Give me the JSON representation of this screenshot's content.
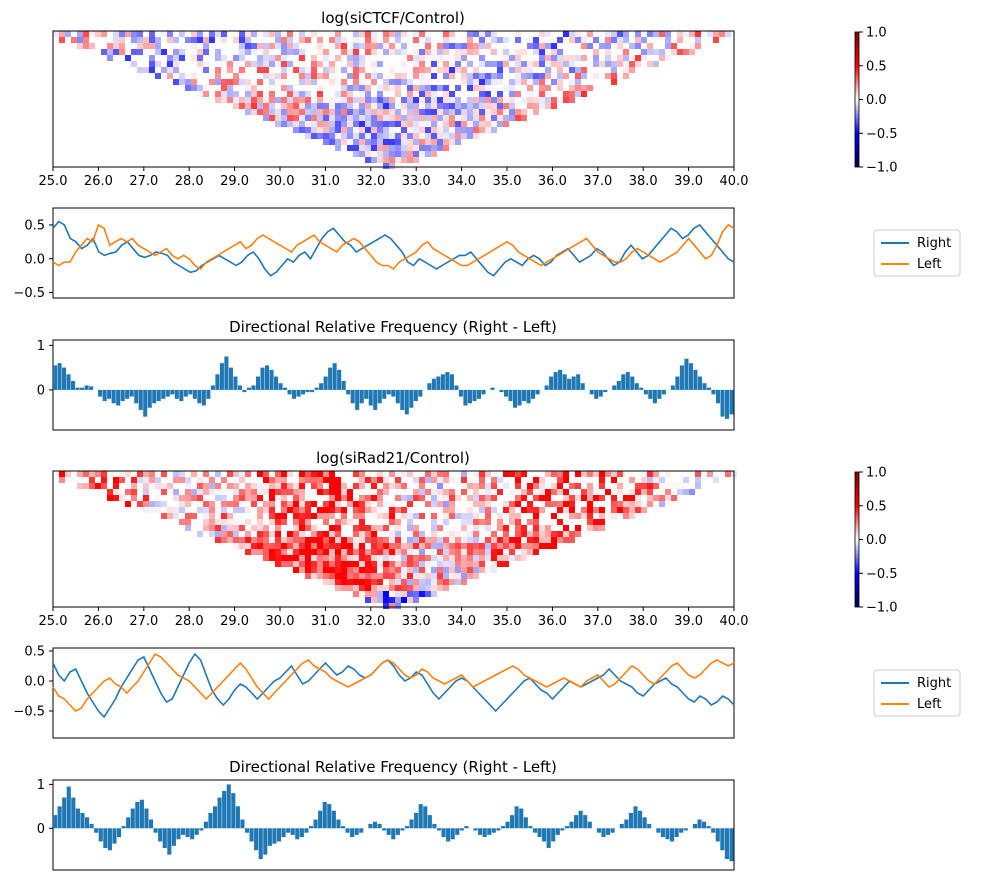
{
  "chart_data": [
    {
      "id": "ctcf_heatmap",
      "type": "heatmap",
      "title": "log(siCTCF/Control)",
      "xlim": [
        25.0,
        40.0
      ],
      "xticks": [
        "25.0",
        "26.0",
        "27.0",
        "28.0",
        "29.0",
        "30.0",
        "31.0",
        "32.0",
        "33.0",
        "34.0",
        "35.0",
        "36.0",
        "37.0",
        "38.0",
        "39.0",
        "40.0"
      ],
      "colorbar": {
        "min": -1.0,
        "max": 1.0,
        "ticks": [
          "1.0",
          "0.5",
          "0.0",
          "−0.5",
          "−1.0"
        ],
        "colormap": "seismic"
      }
    },
    {
      "id": "ctcf_lines",
      "type": "line",
      "ylim": [
        -0.58,
        0.75
      ],
      "yticks": [
        "0.5",
        "0.0",
        "−0.5"
      ],
      "legend": "right",
      "series": [
        {
          "name": "Right",
          "color": "#1f77b4",
          "values": [
            0.45,
            0.55,
            0.5,
            0.3,
            0.25,
            0.15,
            0.2,
            0.3,
            0.1,
            0.05,
            0.08,
            0.1,
            0.2,
            0.25,
            0.15,
            0.05,
            0.02,
            0.05,
            0.1,
            0.08,
            0.05,
            -0.05,
            -0.1,
            -0.15,
            -0.2,
            -0.18,
            -0.1,
            -0.05,
            0.0,
            0.05,
            0.0,
            -0.05,
            -0.1,
            -0.05,
            0.05,
            0.1,
            0.0,
            -0.15,
            -0.25,
            -0.2,
            -0.1,
            0.0,
            -0.05,
            0.05,
            0.1,
            0.0,
            0.15,
            0.3,
            0.4,
            0.45,
            0.35,
            0.25,
            0.2,
            0.1,
            0.15,
            0.2,
            0.25,
            0.3,
            0.35,
            0.3,
            0.2,
            0.1,
            -0.05,
            -0.1,
            0.0,
            -0.05,
            -0.1,
            -0.15,
            -0.1,
            -0.05,
            0.0,
            0.05,
            0.05,
            0.1,
            0.0,
            -0.1,
            -0.2,
            -0.25,
            -0.15,
            -0.05,
            0.0,
            -0.05,
            -0.1,
            0.0,
            0.05,
            0.0,
            -0.1,
            -0.05,
            0.05,
            0.1,
            0.15,
            0.05,
            -0.05,
            0.0,
            0.05,
            0.15,
            0.1,
            0.0,
            -0.1,
            -0.05,
            0.1,
            0.2,
            0.1,
            0.0,
            0.05,
            0.15,
            0.25,
            0.35,
            0.45,
            0.4,
            0.3,
            0.35,
            0.45,
            0.5,
            0.4,
            0.3,
            0.2,
            0.1,
            0.0,
            -0.05
          ]
        },
        {
          "name": "Left",
          "color": "#ff7f0e",
          "values": [
            -0.05,
            -0.1,
            -0.05,
            -0.05,
            0.1,
            0.2,
            0.3,
            0.25,
            0.5,
            0.45,
            0.2,
            0.25,
            0.3,
            0.25,
            0.3,
            0.2,
            0.15,
            0.1,
            0.05,
            0.1,
            0.15,
            0.05,
            0.0,
            0.05,
            0.0,
            -0.1,
            -0.15,
            -0.05,
            0.0,
            0.05,
            0.1,
            0.15,
            0.2,
            0.25,
            0.15,
            0.2,
            0.3,
            0.35,
            0.3,
            0.25,
            0.2,
            0.15,
            0.1,
            0.2,
            0.25,
            0.3,
            0.35,
            0.25,
            0.2,
            0.15,
            0.1,
            0.2,
            0.25,
            0.3,
            0.25,
            0.15,
            0.05,
            -0.05,
            -0.1,
            -0.1,
            -0.15,
            -0.05,
            0.0,
            0.05,
            0.1,
            0.2,
            0.25,
            0.15,
            0.1,
            0.05,
            0.0,
            -0.05,
            -0.1,
            -0.1,
            -0.05,
            0.0,
            0.05,
            0.1,
            0.15,
            0.2,
            0.25,
            0.2,
            0.1,
            0.05,
            0.0,
            -0.05,
            -0.1,
            -0.05,
            0.0,
            0.05,
            0.1,
            0.15,
            0.2,
            0.25,
            0.3,
            0.2,
            0.1,
            0.05,
            0.0,
            -0.05,
            -0.05,
            0.0,
            0.1,
            0.15,
            0.1,
            0.05,
            0.0,
            -0.05,
            0.0,
            0.05,
            0.1,
            0.2,
            0.3,
            0.2,
            0.1,
            0.0,
            0.05,
            0.2,
            0.4,
            0.5,
            0.45
          ]
        }
      ]
    },
    {
      "id": "ctcf_bars",
      "type": "bar",
      "title": "Directional Relative Frequency (Right - Left)",
      "ylim": [
        -0.9,
        1.12
      ],
      "yticks": [
        "1",
        "0"
      ],
      "color": "#1f77b4",
      "values": [
        0.55,
        0.6,
        0.5,
        0.35,
        0.2,
        0.05,
        0.05,
        0.1,
        0.08,
        0.0,
        -0.15,
        -0.25,
        -0.2,
        -0.3,
        -0.35,
        -0.25,
        -0.2,
        -0.15,
        -0.3,
        -0.45,
        -0.6,
        -0.4,
        -0.3,
        -0.25,
        -0.2,
        -0.15,
        -0.1,
        -0.2,
        -0.25,
        -0.15,
        -0.1,
        -0.2,
        -0.3,
        -0.35,
        -0.2,
        0.1,
        0.35,
        0.6,
        0.75,
        0.5,
        0.3,
        0.1,
        -0.05,
        0.05,
        0.1,
        0.3,
        0.5,
        0.55,
        0.45,
        0.3,
        0.15,
        0.05,
        -0.1,
        -0.2,
        -0.15,
        -0.1,
        -0.05,
        -0.05,
        0.05,
        0.15,
        0.3,
        0.5,
        0.6,
        0.45,
        0.2,
        -0.1,
        -0.3,
        -0.45,
        -0.3,
        -0.2,
        -0.35,
        -0.45,
        -0.3,
        -0.2,
        -0.1,
        -0.15,
        -0.3,
        -0.45,
        -0.55,
        -0.4,
        -0.25,
        -0.15,
        0.0,
        0.15,
        0.25,
        0.3,
        0.35,
        0.4,
        0.35,
        0.1,
        -0.15,
        -0.35,
        -0.3,
        -0.25,
        -0.2,
        -0.1,
        0.0,
        0.05,
        0.0,
        -0.05,
        -0.15,
        -0.25,
        -0.4,
        -0.35,
        -0.25,
        -0.3,
        -0.2,
        -0.1,
        0.0,
        0.1,
        0.3,
        0.4,
        0.45,
        0.35,
        0.25,
        0.3,
        0.35,
        0.15,
        0.0,
        -0.1,
        -0.2,
        -0.15,
        -0.05,
        0.0,
        0.1,
        0.2,
        0.35,
        0.4,
        0.3,
        0.15,
        0.05,
        -0.1,
        -0.2,
        -0.3,
        -0.2,
        -0.1,
        0.0,
        0.1,
        0.3,
        0.55,
        0.7,
        0.6,
        0.45,
        0.3,
        0.15,
        0.05,
        -0.1,
        -0.3,
        -0.6,
        -0.65,
        -0.55
      ]
    },
    {
      "id": "rad21_heatmap",
      "type": "heatmap",
      "title": "log(siRad21/Control)",
      "xlim": [
        25.0,
        40.0
      ],
      "xticks": [
        "25.0",
        "26.0",
        "27.0",
        "28.0",
        "29.0",
        "30.0",
        "31.0",
        "32.0",
        "33.0",
        "34.0",
        "35.0",
        "36.0",
        "37.0",
        "38.0",
        "39.0",
        "40.0"
      ],
      "colorbar": {
        "min": -1.0,
        "max": 1.0,
        "ticks": [
          "1.0",
          "0.5",
          "0.0",
          "−0.5",
          "−1.0"
        ],
        "colormap": "seismic"
      }
    },
    {
      "id": "rad21_lines",
      "type": "line",
      "ylim": [
        -0.95,
        0.55
      ],
      "yticks": [
        "0.5",
        "0.0",
        "−0.5"
      ],
      "legend": "right",
      "series": [
        {
          "name": "Right",
          "color": "#1f77b4",
          "values": [
            0.3,
            0.1,
            0.0,
            0.15,
            0.2,
            0.0,
            -0.2,
            -0.35,
            -0.5,
            -0.6,
            -0.45,
            -0.3,
            -0.1,
            0.05,
            0.2,
            0.35,
            0.4,
            0.2,
            0.0,
            -0.2,
            -0.35,
            -0.3,
            -0.1,
            0.1,
            0.3,
            0.45,
            0.35,
            0.1,
            -0.15,
            -0.3,
            -0.4,
            -0.3,
            -0.15,
            -0.05,
            -0.1,
            -0.2,
            -0.3,
            -0.2,
            -0.1,
            0.0,
            0.05,
            0.15,
            0.25,
            0.1,
            -0.05,
            0.0,
            0.1,
            0.2,
            0.3,
            0.2,
            0.1,
            0.15,
            0.25,
            0.2,
            0.1,
            0.05,
            0.1,
            0.2,
            0.3,
            0.35,
            0.25,
            0.1,
            0.0,
            0.05,
            0.15,
            0.1,
            -0.05,
            -0.2,
            -0.3,
            -0.2,
            -0.1,
            0.0,
            0.05,
            0.0,
            -0.1,
            -0.2,
            -0.3,
            -0.4,
            -0.5,
            -0.4,
            -0.3,
            -0.2,
            -0.1,
            0.0,
            0.05,
            -0.05,
            -0.15,
            -0.2,
            -0.3,
            -0.2,
            -0.1,
            0.0,
            -0.05,
            -0.1,
            -0.05,
            0.0,
            0.05,
            0.1,
            0.2,
            0.1,
            0.0,
            -0.05,
            -0.1,
            -0.2,
            -0.25,
            -0.15,
            -0.05,
            0.0,
            0.05,
            -0.05,
            -0.1,
            -0.2,
            -0.3,
            -0.35,
            -0.25,
            -0.3,
            -0.4,
            -0.35,
            -0.25,
            -0.3,
            -0.4
          ]
        },
        {
          "name": "Left",
          "color": "#ff7f0e",
          "values": [
            -0.1,
            -0.25,
            -0.3,
            -0.4,
            -0.5,
            -0.45,
            -0.3,
            -0.2,
            -0.1,
            0.0,
            0.05,
            -0.05,
            -0.1,
            -0.2,
            -0.1,
            0.0,
            0.15,
            0.3,
            0.45,
            0.4,
            0.3,
            0.2,
            0.1,
            0.05,
            0.0,
            -0.1,
            -0.2,
            -0.3,
            -0.2,
            -0.1,
            0.0,
            0.1,
            0.2,
            0.3,
            0.2,
            0.05,
            -0.1,
            -0.2,
            -0.3,
            -0.2,
            -0.1,
            0.0,
            0.1,
            0.2,
            0.3,
            0.35,
            0.25,
            0.2,
            0.15,
            0.05,
            0.0,
            -0.05,
            -0.1,
            -0.05,
            0.0,
            0.05,
            0.1,
            0.2,
            0.3,
            0.35,
            0.3,
            0.2,
            0.1,
            0.05,
            0.1,
            0.2,
            0.15,
            0.05,
            0.0,
            -0.05,
            0.0,
            0.05,
            0.1,
            0.0,
            -0.1,
            -0.05,
            0.0,
            0.05,
            0.1,
            0.15,
            0.2,
            0.25,
            0.2,
            0.1,
            0.05,
            0.0,
            -0.05,
            -0.1,
            -0.05,
            0.0,
            0.05,
            0.0,
            -0.05,
            -0.1,
            0.0,
            0.05,
            0.1,
            0.0,
            -0.1,
            -0.05,
            0.05,
            0.15,
            0.25,
            0.2,
            0.1,
            0.0,
            -0.05,
            0.05,
            0.15,
            0.25,
            0.3,
            0.2,
            0.1,
            0.05,
            0.1,
            0.2,
            0.3,
            0.35,
            0.3,
            0.25,
            0.3
          ]
        }
      ]
    },
    {
      "id": "rad21_bars",
      "type": "bar",
      "title": "Directional Relative Frequency (Right - Left)",
      "ylim": [
        -0.95,
        1.1
      ],
      "yticks": [
        "1",
        "0"
      ],
      "color": "#1f77b4",
      "values": [
        0.3,
        0.5,
        0.7,
        0.95,
        0.7,
        0.45,
        0.35,
        0.25,
        0.1,
        -0.1,
        -0.3,
        -0.45,
        -0.5,
        -0.35,
        -0.2,
        0.05,
        0.25,
        0.45,
        0.6,
        0.65,
        0.45,
        0.2,
        -0.1,
        -0.3,
        -0.45,
        -0.6,
        -0.4,
        -0.25,
        -0.15,
        -0.2,
        -0.25,
        -0.15,
        -0.05,
        0.15,
        0.35,
        0.5,
        0.7,
        0.85,
        1.0,
        0.8,
        0.5,
        0.2,
        -0.1,
        -0.3,
        -0.5,
        -0.7,
        -0.6,
        -0.4,
        -0.35,
        -0.3,
        -0.2,
        -0.1,
        -0.15,
        -0.25,
        -0.2,
        -0.1,
        0.05,
        0.2,
        0.4,
        0.6,
        0.55,
        0.4,
        0.2,
        0.05,
        -0.1,
        -0.2,
        -0.15,
        -0.1,
        0.0,
        0.1,
        0.15,
        0.1,
        -0.05,
        -0.15,
        -0.25,
        -0.15,
        -0.05,
        0.05,
        0.2,
        0.35,
        0.55,
        0.5,
        0.3,
        0.1,
        -0.05,
        -0.2,
        -0.3,
        -0.25,
        -0.15,
        -0.05,
        0.05,
        0.0,
        -0.05,
        -0.15,
        -0.2,
        -0.15,
        -0.1,
        -0.05,
        0.05,
        0.15,
        0.3,
        0.5,
        0.45,
        0.25,
        0.05,
        -0.1,
        -0.2,
        -0.3,
        -0.45,
        -0.3,
        -0.15,
        -0.05,
        0.05,
        0.15,
        0.3,
        0.4,
        0.3,
        0.15,
        0.0,
        -0.1,
        -0.2,
        -0.15,
        -0.1,
        0.0,
        0.1,
        0.2,
        0.35,
        0.5,
        0.4,
        0.25,
        0.1,
        0.0,
        -0.1,
        -0.2,
        -0.25,
        -0.3,
        -0.2,
        -0.1,
        -0.05,
        0.0,
        0.1,
        0.2,
        0.15,
        0.05,
        -0.1,
        -0.3,
        -0.5,
        -0.7,
        -0.75
      ]
    }
  ]
}
